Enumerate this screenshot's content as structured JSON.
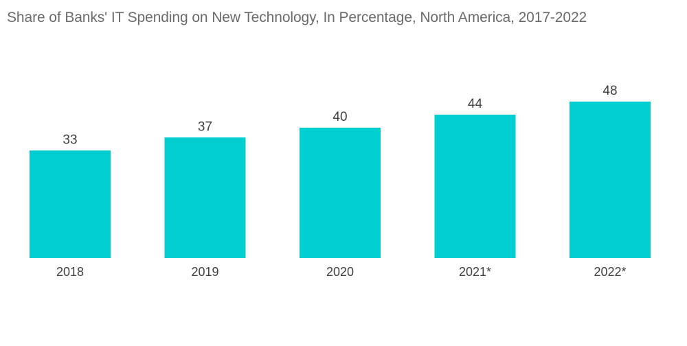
{
  "chart_data": {
    "type": "bar",
    "title": "Share of Banks' IT Spending on New Technology, In Percentage, North America, 2017-2022",
    "categories": [
      "2018",
      "2019",
      "2020",
      "2021*",
      "2022*"
    ],
    "values": [
      33,
      37,
      40,
      44,
      48
    ],
    "data_labels": [
      "33",
      "37",
      "40",
      "44",
      "48"
    ],
    "xlabel": "",
    "ylabel": "",
    "ylim": [
      0,
      48
    ],
    "grid": false,
    "legend": "none",
    "bar_color": "#00CED1"
  }
}
